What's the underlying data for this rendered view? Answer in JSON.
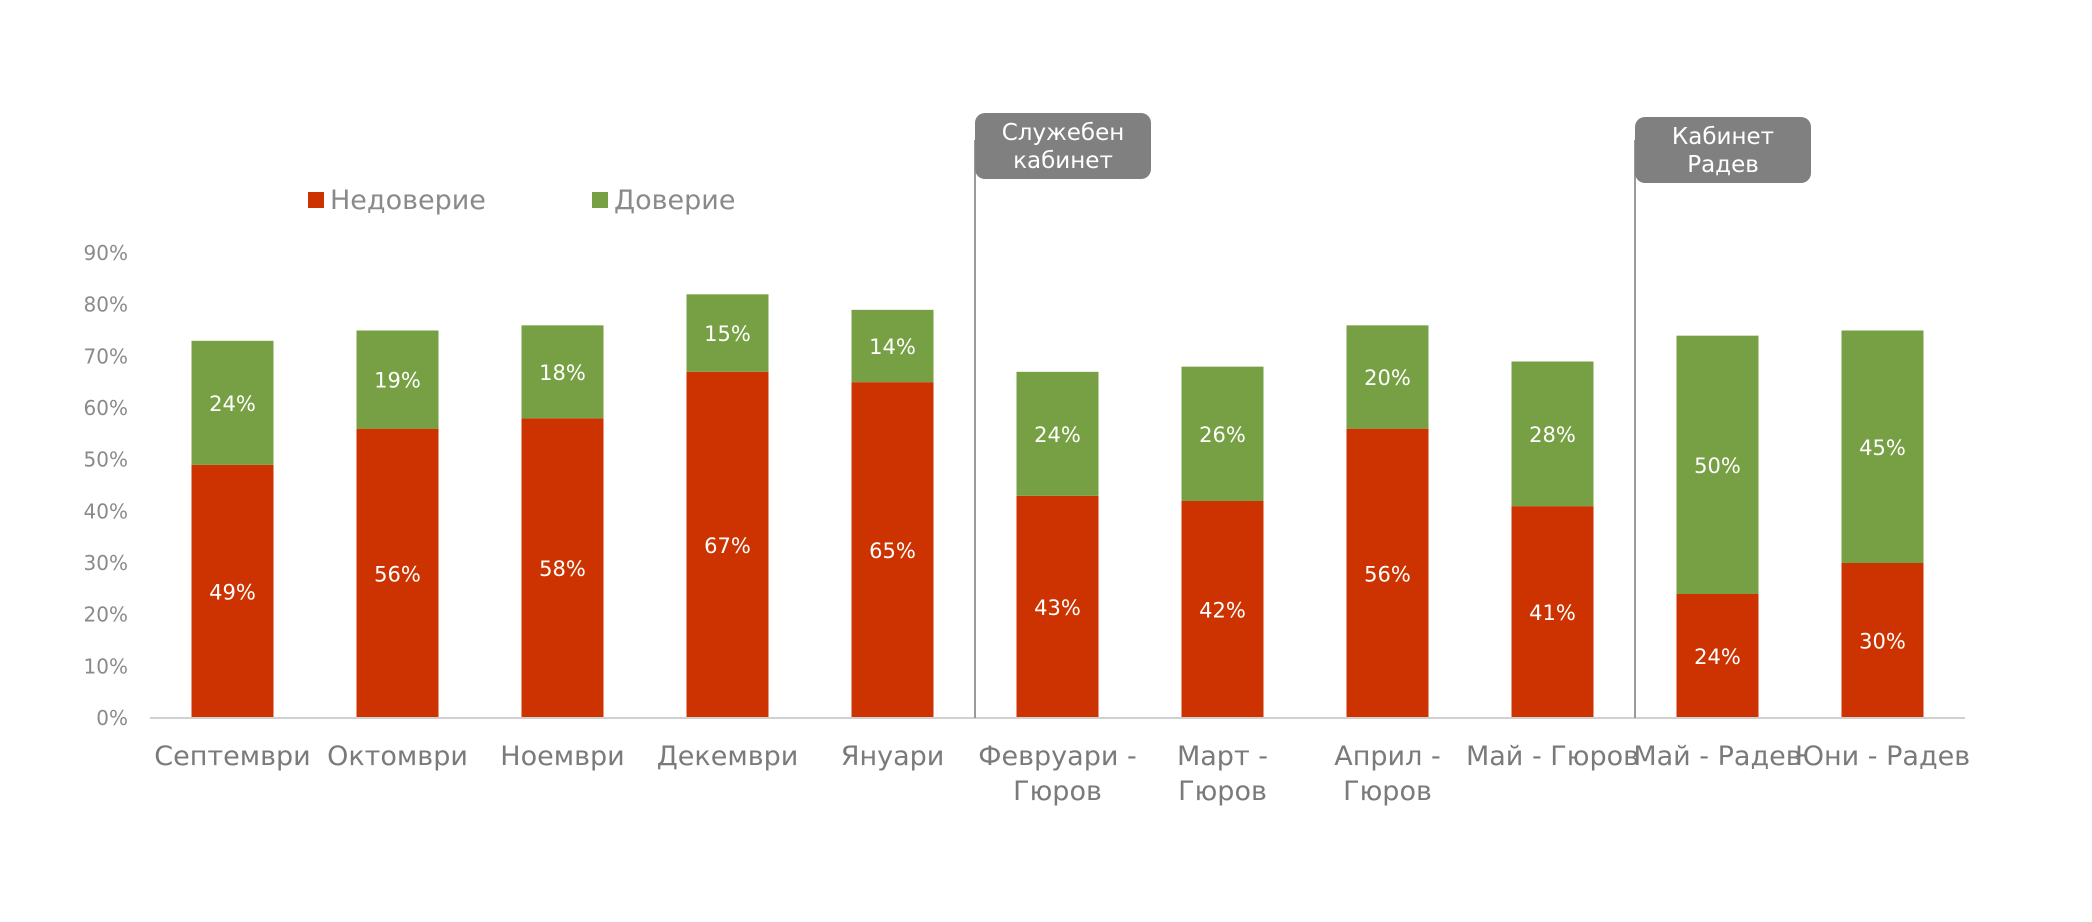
{
  "chart_data": {
    "type": "bar",
    "stacked": true,
    "categories": [
      [
        "Септември"
      ],
      [
        "Октомври"
      ],
      [
        "Ноември"
      ],
      [
        "Декември"
      ],
      [
        "Януари"
      ],
      [
        "Февруари -",
        "Гюров"
      ],
      [
        "Март -",
        "Гюров"
      ],
      [
        "Април -",
        "Гюров"
      ],
      [
        "Май - Гюров"
      ],
      [
        "Май - Радев"
      ],
      [
        "Юни - Радев"
      ]
    ],
    "series": [
      {
        "name": "Недоверие",
        "color": "#cc3300",
        "values": [
          49,
          56,
          58,
          67,
          65,
          43,
          42,
          56,
          41,
          24,
          30
        ]
      },
      {
        "name": "Доверие",
        "color": "#76a043",
        "values": [
          24,
          19,
          18,
          15,
          14,
          24,
          26,
          20,
          28,
          50,
          45
        ]
      }
    ],
    "value_suffix": "%",
    "ylim": [
      0,
      90
    ],
    "yticks": [
      0,
      10,
      20,
      30,
      40,
      50,
      60,
      70,
      80,
      90
    ],
    "ytick_labels": [
      "0%",
      "10%",
      "20%",
      "30%",
      "40%",
      "50%",
      "60%",
      "70%",
      "80%",
      "90%"
    ],
    "legend_position": "top-left",
    "grid": false,
    "annotations": [
      {
        "lines": [
          "Служебен",
          "кабинет"
        ],
        "before_category": 5
      },
      {
        "lines": [
          "Кабинет",
          "Радев"
        ],
        "before_category": 9
      }
    ],
    "annotation_color": "#808080"
  }
}
